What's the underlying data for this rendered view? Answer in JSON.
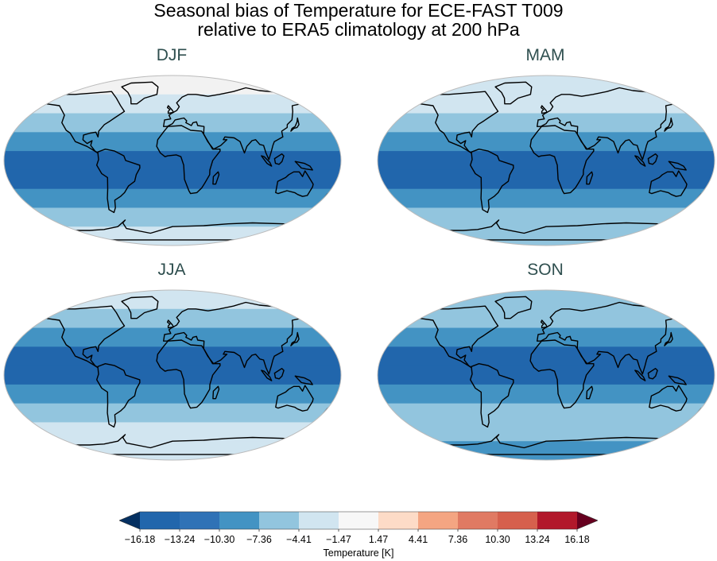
{
  "title": {
    "line1": "Seasonal bias of Temperature for ECE-FAST T009",
    "line2": "relative to ERA5 climatology at 200 hPa"
  },
  "panels": [
    {
      "label": "DJF",
      "bands": [
        "#f2f2f2",
        "#d1e5f0",
        "#92c5de",
        "#4393c3",
        "#2166ac",
        "#2166ac",
        "#4393c3",
        "#92c5de",
        "#d1e5f0"
      ]
    },
    {
      "label": "MAM",
      "bands": [
        "#d1e5f0",
        "#d1e5f0",
        "#92c5de",
        "#4393c3",
        "#2166ac",
        "#2166ac",
        "#4393c3",
        "#92c5de",
        "#92c5de"
      ]
    },
    {
      "label": "JJA",
      "bands": [
        "#d1e5f0",
        "#92c5de",
        "#4393c3",
        "#2166ac",
        "#2166ac",
        "#4393c3",
        "#92c5de",
        "#d1e5f0",
        "#d1e5f0"
      ]
    },
    {
      "label": "SON",
      "bands": [
        "#92c5de",
        "#92c5de",
        "#4393c3",
        "#2166ac",
        "#2166ac",
        "#4393c3",
        "#92c5de",
        "#92c5de",
        "#4393c3"
      ]
    }
  ],
  "colorbar": {
    "label": "Temperature [K]",
    "ticks": [
      "−16.18",
      "−13.24",
      "−10.30",
      "−7.36",
      "−4.41",
      "−1.47",
      "1.47",
      "4.41",
      "7.36",
      "10.30",
      "13.24",
      "16.18"
    ],
    "colors": [
      "#053061",
      "#2166ac",
      "#2f72b6",
      "#4393c3",
      "#92c5de",
      "#d1e5f0",
      "#f7f7f7",
      "#fddbc7",
      "#f4a582",
      "#e07a63",
      "#d6604d",
      "#b2182b",
      "#67001f"
    ]
  }
}
